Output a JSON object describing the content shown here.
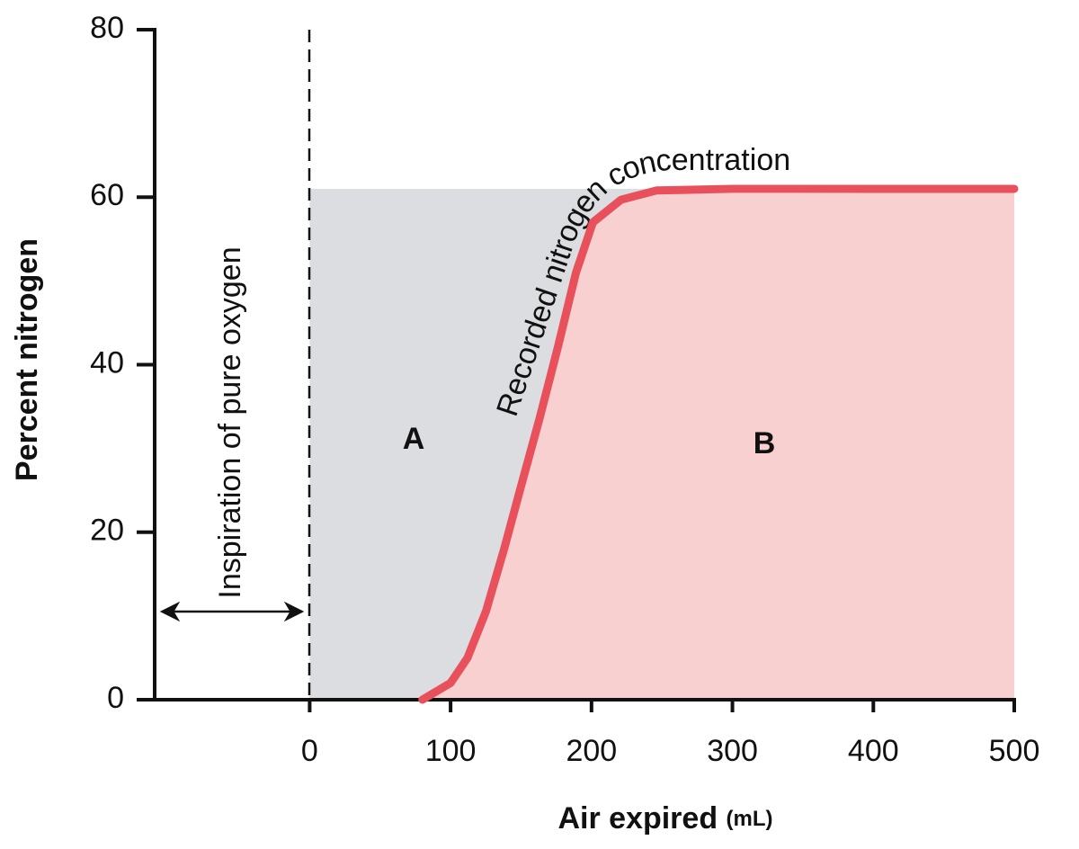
{
  "chart_data": {
    "type": "line",
    "y_label": "Percent nitrogen",
    "x_label": "Air expired",
    "x_unit": "(mL)",
    "annotations": {
      "curve": "Recorded nitrogen concentration",
      "inspiration": "Inspiration of pure oxygen",
      "region_a": "A",
      "region_b": "B"
    },
    "x": [
      80,
      100,
      112,
      125,
      138,
      150,
      163,
      176,
      189,
      201,
      221,
      246,
      300,
      400,
      500
    ],
    "series": [
      {
        "name": "Recorded nitrogen concentration",
        "color": "#e8505b",
        "fill_color": "#f9d0d0",
        "values": [
          0,
          2,
          5,
          10.5,
          18,
          25.5,
          33.5,
          42,
          51,
          57,
          59.7,
          60.8,
          61,
          61,
          61
        ]
      }
    ],
    "dead_space_color": "#dcdde0",
    "xlim": [
      -110,
      500
    ],
    "xticks": [
      0,
      100,
      200,
      300,
      400,
      500
    ],
    "ylim": [
      0,
      80
    ],
    "yticks": [
      0,
      20,
      40,
      60,
      80
    ]
  }
}
